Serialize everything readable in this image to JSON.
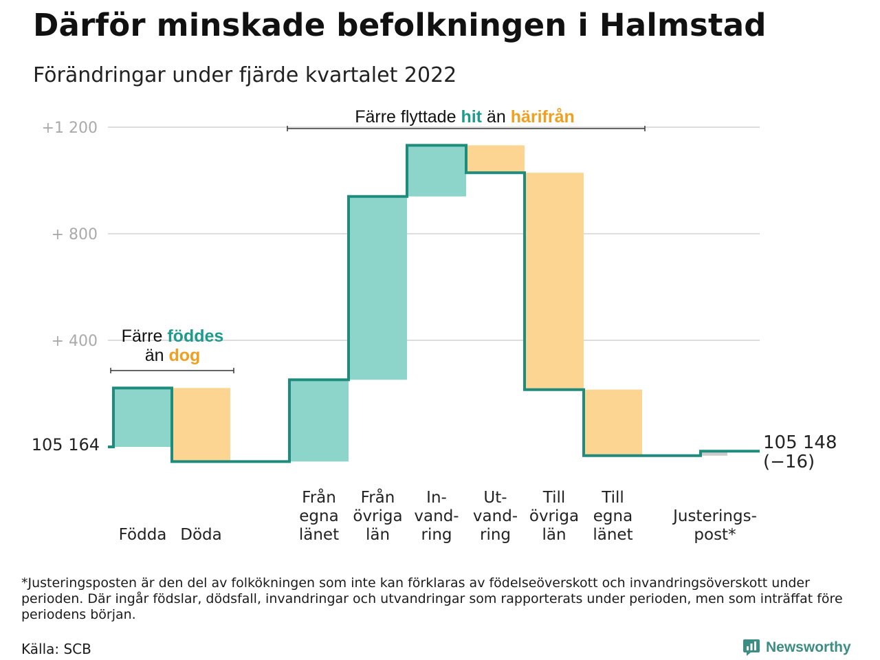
{
  "header": {
    "title": "Därför minskade befolkningen i Halmstad",
    "subtitle": "Förändringar under fjärde kvartalet 2022"
  },
  "colors": {
    "inflow_fill": "#8dd5cb",
    "outflow_fill": "#fbd591",
    "adjustment_fill": "#cccccc",
    "step_line": "#1e8c7c",
    "accent_teal": "#1e9b8a",
    "accent_orange": "#f0a020",
    "grid": "#dddddd",
    "tick_text": "#aaaaaa"
  },
  "chart_data": {
    "type": "waterfall",
    "start": {
      "label": "105 164",
      "value": 0
    },
    "end": {
      "label_line1": "105 148",
      "label_line2": "(−16)",
      "value": -16
    },
    "y_ticks": [
      {
        "label": "+1 200",
        "value": 1200
      },
      {
        "label": "+ 800",
        "value": 800
      },
      {
        "label": "+ 400",
        "value": 400
      }
    ],
    "ylim": [
      -80,
      1260
    ],
    "grid": true,
    "steps": [
      {
        "id": "fodda",
        "label": [
          "Födda"
        ],
        "value": 221,
        "kind": "in"
      },
      {
        "id": "doda",
        "label": [
          "Döda"
        ],
        "value": -276,
        "kind": "out"
      },
      {
        "id": "fran-egna-lanet",
        "label": [
          "Från",
          "egna",
          "länet"
        ],
        "value": 307,
        "kind": "in"
      },
      {
        "id": "fran-ovriga-lan",
        "label": [
          "Från",
          "övriga",
          "län"
        ],
        "value": 688,
        "kind": "in"
      },
      {
        "id": "invandring",
        "label": [
          "In-",
          "vand-",
          "ring"
        ],
        "value": 192,
        "kind": "in"
      },
      {
        "id": "utvandring",
        "label": [
          "Ut-",
          "vand-",
          "ring"
        ],
        "value": -103,
        "kind": "out"
      },
      {
        "id": "till-ovriga-lan",
        "label": [
          "Till",
          "övriga",
          "län"
        ],
        "value": -814,
        "kind": "out"
      },
      {
        "id": "till-egna-lanet",
        "label": [
          "Till",
          "egna",
          "länet"
        ],
        "value": -248,
        "kind": "out"
      },
      {
        "id": "justeringspost",
        "label": [
          "Justerings-",
          "post*"
        ],
        "value": 17,
        "kind": "adjust"
      }
    ],
    "annotations": [
      {
        "id": "births-deaths",
        "pre": "Färre ",
        "hi1": "föddes",
        "mid": "än ",
        "hi2": "dog",
        "post": ""
      },
      {
        "id": "migration",
        "pre": "Färre flyttade ",
        "hi1": "hit",
        "mid": " än ",
        "hi2": "härifrån",
        "post": ""
      }
    ]
  },
  "footer": {
    "footnote": "*Justeringsposten är den del av folkökningen som inte kan förklaras av födelseöverskott och invandringsöverskott under perioden. Där ingår födslar, dödsfall, invandringar och utvandringar som rapporterats under perioden, men som inträffat före periodens början.",
    "source": "Källa: SCB",
    "brand": "Newsworthy"
  }
}
